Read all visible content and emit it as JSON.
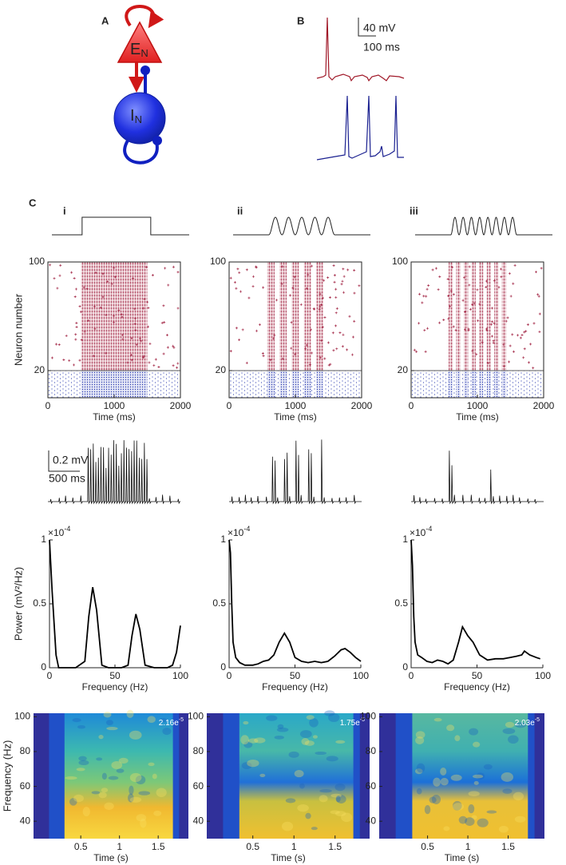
{
  "panel_labels": {
    "a": "A",
    "b": "B",
    "c": "C"
  },
  "diagram": {
    "e_label": "E",
    "e_sub": "N",
    "i_label": "I",
    "i_sub": "N"
  },
  "scale_b": {
    "voltage": "40 mV",
    "time": "100 ms"
  },
  "conditions": [
    "i",
    "ii",
    "iii"
  ],
  "scale_c": {
    "voltage": "0.2 mV",
    "time": "500 ms"
  },
  "chart_data": [
    {
      "type": "raster",
      "ylabel": "Neuron number",
      "xlabel": "Time (ms)",
      "xlim": [
        0,
        2000
      ],
      "xticks": [
        0,
        1000,
        2000
      ],
      "ylim": [
        0,
        100
      ],
      "yticks": [
        20,
        100
      ]
    },
    {
      "type": "raster",
      "xlabel": "Time (ms)",
      "xlim": [
        0,
        2000
      ],
      "xticks": [
        0,
        1000,
        2000
      ],
      "ylim": [
        0,
        100
      ],
      "yticks": [
        20,
        100
      ]
    },
    {
      "type": "raster",
      "xlabel": "Time (ms)",
      "xlim": [
        0,
        2000
      ],
      "xticks": [
        0,
        1000,
        2000
      ],
      "ylim": [
        0,
        100
      ],
      "yticks": [
        20,
        100
      ]
    },
    {
      "type": "line",
      "ylabel": "Power (mV²/Hz)",
      "xlabel": "Frequency (Hz)",
      "multiplier": "×10",
      "multiplier_exp": "-4",
      "color": "#000000",
      "xlim": [
        0,
        100
      ],
      "xticks": [
        0,
        50,
        100
      ],
      "ylim": [
        0,
        1
      ],
      "yticks": [
        0,
        0.5,
        1
      ],
      "x": [
        0,
        2,
        5,
        7,
        10,
        20,
        27,
        30,
        33,
        36,
        40,
        45,
        55,
        60,
        63,
        66,
        69,
        73,
        80,
        90,
        94,
        97,
        100
      ],
      "values": [
        1,
        0.6,
        0.1,
        0,
        0,
        0,
        0.05,
        0.4,
        0.63,
        0.45,
        0.02,
        0,
        0,
        0.02,
        0.25,
        0.42,
        0.3,
        0.02,
        0,
        0,
        0.02,
        0.12,
        0.33
      ]
    },
    {
      "type": "line",
      "xlabel": "Frequency (Hz)",
      "multiplier": "×10",
      "multiplier_exp": "-4",
      "color": "#000000",
      "xlim": [
        0,
        100
      ],
      "xticks": [
        0,
        50,
        100
      ],
      "ylim": [
        0,
        1
      ],
      "yticks": [
        0,
        0.5,
        1
      ],
      "x": [
        0,
        1,
        2,
        3,
        5,
        8,
        12,
        18,
        22,
        26,
        30,
        34,
        38,
        42,
        46,
        50,
        55,
        60,
        65,
        70,
        75,
        80,
        85,
        88,
        92,
        96,
        100
      ],
      "values": [
        1,
        0.9,
        0.5,
        0.2,
        0.08,
        0.04,
        0.02,
        0.02,
        0.03,
        0.05,
        0.06,
        0.1,
        0.2,
        0.27,
        0.2,
        0.08,
        0.05,
        0.04,
        0.05,
        0.04,
        0.05,
        0.09,
        0.14,
        0.15,
        0.12,
        0.08,
        0.05
      ]
    },
    {
      "type": "line",
      "xlabel": "Frequency (Hz)",
      "multiplier": "×10",
      "multiplier_exp": "-4",
      "color": "#000000",
      "xlim": [
        0,
        100
      ],
      "xticks": [
        0,
        50,
        100
      ],
      "ylim": [
        0,
        1
      ],
      "yticks": [
        0,
        0.5,
        1
      ],
      "x": [
        0,
        1,
        2,
        3,
        5,
        8,
        12,
        16,
        20,
        24,
        28,
        32,
        36,
        39,
        43,
        47,
        52,
        58,
        64,
        70,
        75,
        80,
        84,
        86,
        90,
        95,
        98
      ],
      "values": [
        1,
        0.8,
        0.4,
        0.2,
        0.1,
        0.08,
        0.05,
        0.04,
        0.06,
        0.05,
        0.03,
        0.06,
        0.2,
        0.32,
        0.25,
        0.2,
        0.1,
        0.06,
        0.07,
        0.07,
        0.08,
        0.09,
        0.1,
        0.13,
        0.1,
        0.08,
        0.07
      ]
    },
    {
      "type": "spectrogram",
      "ylabel": "Frequency (Hz)",
      "xlabel": "Time (s)",
      "max_label": "2.16e",
      "max_exp": "-5",
      "xlim": [
        -0.11,
        1.89
      ],
      "xticks": [
        0.5,
        1,
        1.5
      ],
      "ylim": [
        30,
        102
      ],
      "yticks": [
        40,
        60,
        80,
        100
      ]
    },
    {
      "type": "spectrogram",
      "xlabel": "Time (s)",
      "max_label": "1.75e",
      "max_exp": "-5",
      "xlim": [
        -0.06,
        1.92
      ],
      "xticks": [
        0.5,
        1,
        1.5
      ],
      "ylim": [
        30,
        102
      ],
      "yticks": [
        40,
        60,
        80,
        100
      ]
    },
    {
      "type": "spectrogram",
      "xlabel": "Time (s)",
      "max_label": "2.03e",
      "max_exp": "-5",
      "xlim": [
        -0.1,
        1.95
      ],
      "xticks": [
        0.5,
        1,
        1.5
      ],
      "ylim": [
        30,
        102
      ],
      "yticks": [
        40,
        60,
        80,
        100
      ]
    }
  ]
}
